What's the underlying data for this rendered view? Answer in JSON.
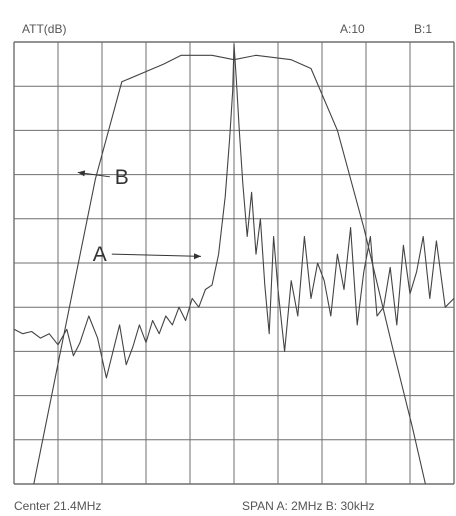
{
  "chart_data": {
    "type": "line",
    "ylabel": "ATT(dB)",
    "scale_note": {
      "a": "A:10",
      "b": "B:1"
    },
    "footer": {
      "center": "Center  21.4MHz",
      "span": "SPAN  A: 2MHz  B: 30kHz"
    },
    "grid": true,
    "grid_divisions": {
      "x": 10,
      "y": 10
    },
    "x_range": [
      -5,
      5
    ],
    "y_range": [
      0,
      10
    ],
    "series": [
      {
        "label": "B",
        "color": "#444444",
        "x": [
          -4.55,
          -3.7,
          -3.15,
          -2.55,
          -1.6,
          -1.2,
          -0.5,
          0.0,
          0.5,
          1.3,
          1.75,
          2.35,
          2.95,
          3.6,
          4.05,
          4.35
        ],
        "y": [
          0.0,
          4.2,
          6.9,
          9.1,
          9.5,
          9.7,
          9.7,
          9.6,
          9.7,
          9.6,
          9.4,
          8.0,
          5.8,
          3.1,
          1.3,
          0.0
        ]
      },
      {
        "label": "A",
        "color": "#444444",
        "x": [
          -5.0,
          -4.8,
          -4.6,
          -4.4,
          -4.2,
          -4.0,
          -3.8,
          -3.65,
          -3.5,
          -3.3,
          -3.1,
          -2.9,
          -2.75,
          -2.6,
          -2.45,
          -2.3,
          -2.15,
          -2.0,
          -1.85,
          -1.7,
          -1.55,
          -1.4,
          -1.25,
          -1.1,
          -0.95,
          -0.8,
          -0.65,
          -0.5,
          -0.35,
          -0.2,
          -0.1,
          -0.03,
          0.0,
          0.05,
          0.12,
          0.2,
          0.3,
          0.4,
          0.5,
          0.6,
          0.7,
          0.8,
          0.9,
          1.0,
          1.15,
          1.3,
          1.45,
          1.6,
          1.75,
          1.9,
          2.05,
          2.2,
          2.35,
          2.5,
          2.65,
          2.8,
          2.95,
          3.1,
          3.25,
          3.4,
          3.55,
          3.7,
          3.85,
          4.0,
          4.15,
          4.3,
          4.45,
          4.6,
          4.8,
          5.0
        ],
        "y": [
          3.5,
          3.4,
          3.45,
          3.3,
          3.4,
          3.15,
          3.5,
          2.9,
          3.2,
          3.8,
          3.3,
          2.4,
          3.0,
          3.6,
          2.7,
          3.1,
          3.6,
          3.2,
          3.7,
          3.4,
          3.8,
          3.6,
          4.0,
          3.7,
          4.2,
          4.0,
          4.4,
          4.5,
          5.2,
          6.5,
          7.8,
          8.9,
          9.95,
          9.2,
          8.0,
          6.8,
          5.6,
          6.6,
          5.2,
          6.0,
          4.5,
          3.4,
          5.6,
          4.4,
          3.0,
          4.6,
          3.8,
          5.6,
          4.2,
          5.0,
          4.6,
          3.8,
          5.2,
          4.4,
          5.8,
          3.6,
          4.8,
          5.6,
          3.8,
          4.0,
          4.9,
          3.6,
          5.4,
          4.3,
          4.8,
          5.6,
          4.2,
          5.5,
          4.0,
          4.2
        ]
      }
    ],
    "annotations": [
      {
        "text": "B",
        "points_to": "B",
        "at": [
          -2.55,
          6.95
        ],
        "arrow_to": [
          -3.55,
          7.05
        ]
      },
      {
        "text": "A",
        "points_to": "A",
        "at": [
          -3.05,
          5.2
        ],
        "arrow_to": [
          -0.75,
          5.15
        ]
      }
    ]
  }
}
